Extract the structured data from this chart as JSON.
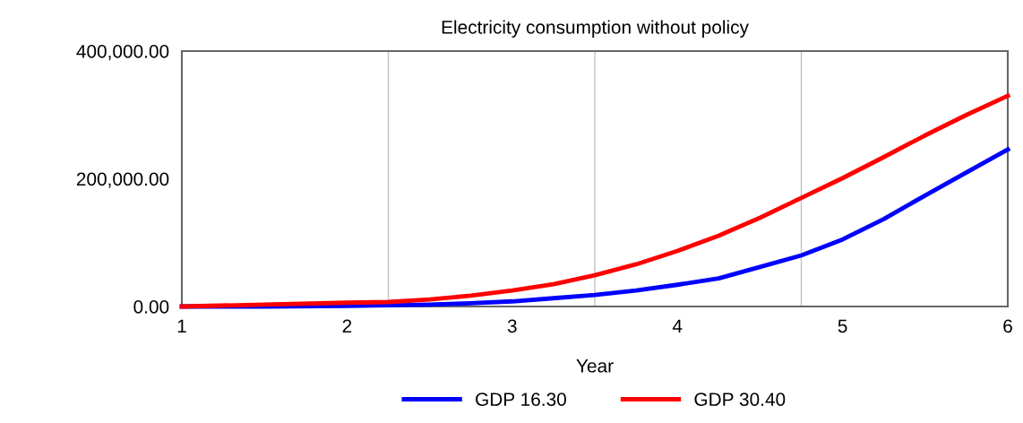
{
  "chart_data": {
    "type": "line",
    "title": "Electricity consumption without policy",
    "xlabel": "Year",
    "x": [
      1,
      1.5,
      2,
      2.25,
      2.5,
      2.75,
      3,
      3.25,
      3.5,
      3.75,
      4,
      4.25,
      4.5,
      4.75,
      5,
      5.25,
      5.5,
      5.75,
      6
    ],
    "series": [
      {
        "name": "GDP 16.30",
        "color": "#0000ff",
        "values": [
          0,
          0,
          1000,
          2000,
          3000,
          5000,
          8000,
          13000,
          18000,
          25000,
          34000,
          44000,
          62000,
          80000,
          105000,
          137000,
          174000,
          210000,
          246000
        ]
      },
      {
        "name": "GDP 30.40",
        "color": "#ff0000",
        "values": [
          0,
          3000,
          6000,
          7000,
          11000,
          17000,
          25000,
          35000,
          49000,
          66000,
          87000,
          111000,
          139000,
          170000,
          201000,
          234000,
          268000,
          300000,
          330000
        ]
      }
    ],
    "xlim": [
      1,
      6
    ],
    "xticks": [
      1,
      2,
      3,
      4,
      5,
      6
    ],
    "ylim": [
      0,
      400000
    ],
    "yticks": [
      {
        "value": 0,
        "label": "0.00"
      },
      {
        "value": 200000,
        "label": "200,000.00"
      },
      {
        "value": 400000,
        "label": "400,000.00"
      }
    ],
    "ref_lines": [
      {
        "axis": "x",
        "value": 2.25,
        "color": "#c0c0c0"
      },
      {
        "axis": "x",
        "value": 3.5,
        "color": "#c0c0c0"
      },
      {
        "axis": "x",
        "value": 4.75,
        "color": "#c0c0c0"
      }
    ],
    "grid": false,
    "legend": "bottom",
    "marker": "none",
    "line_style": "solid"
  }
}
